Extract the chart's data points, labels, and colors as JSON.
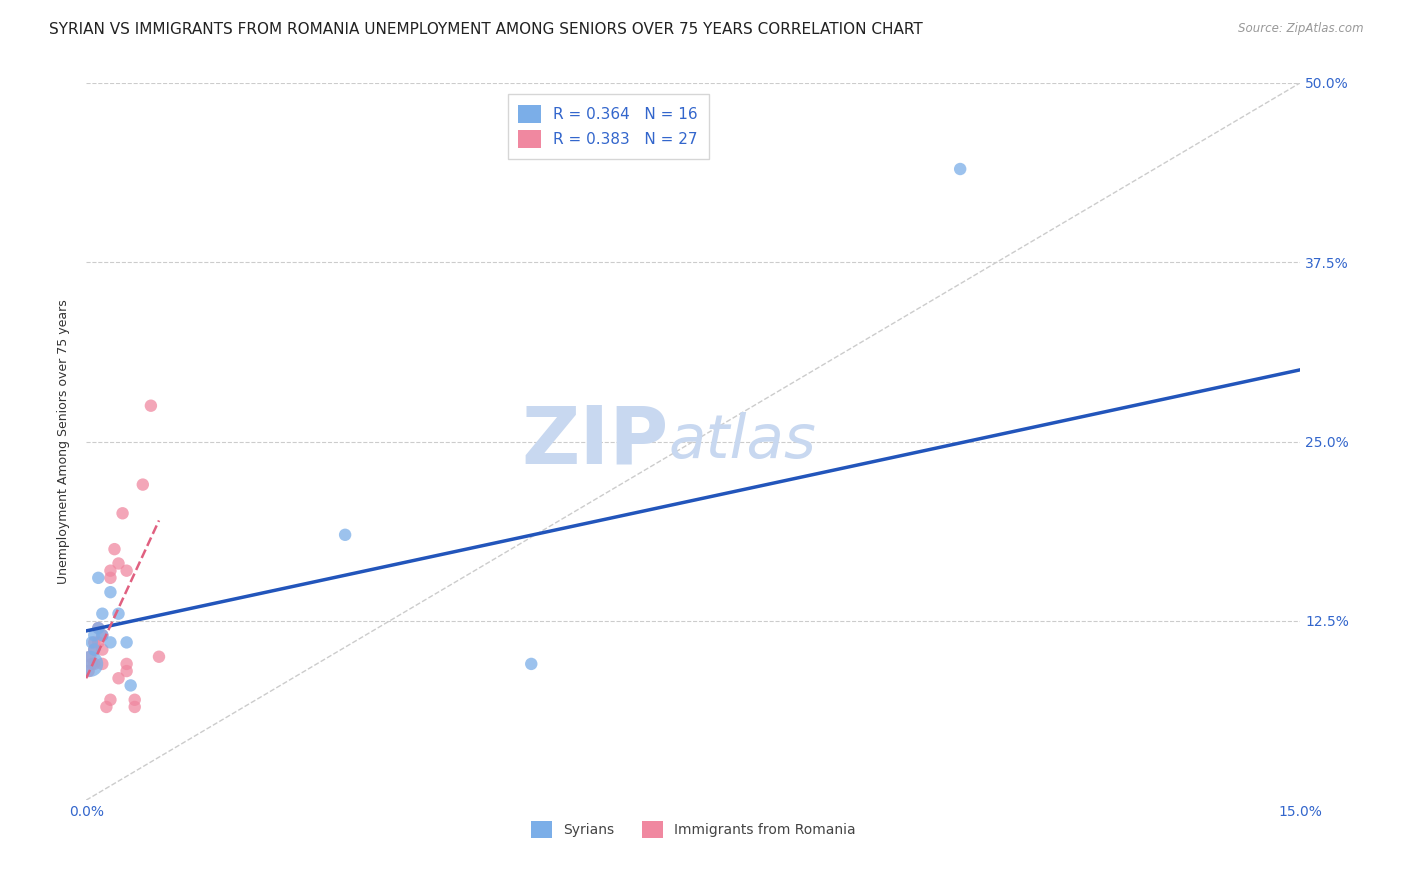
{
  "title": "SYRIAN VS IMMIGRANTS FROM ROMANIA UNEMPLOYMENT AMONG SENIORS OVER 75 YEARS CORRELATION CHART",
  "source": "Source: ZipAtlas.com",
  "ylabel": "Unemployment Among Seniors over 75 years",
  "xlim": [
    0.0,
    0.15
  ],
  "ylim": [
    0.0,
    0.5
  ],
  "legend_entries": [
    {
      "label": "R = 0.364   N = 16",
      "color": "#aac4ee"
    },
    {
      "label": "R = 0.383   N = 27",
      "color": "#f4aabe"
    }
  ],
  "legend_bottom": [
    "Syrians",
    "Immigrants from Romania"
  ],
  "syrians_x": [
    0.0005,
    0.0007,
    0.001,
    0.001,
    0.0015,
    0.0015,
    0.002,
    0.002,
    0.003,
    0.003,
    0.004,
    0.005,
    0.0055,
    0.032,
    0.055,
    0.108
  ],
  "syrians_y": [
    0.095,
    0.11,
    0.115,
    0.105,
    0.12,
    0.155,
    0.115,
    0.13,
    0.145,
    0.11,
    0.13,
    0.11,
    0.08,
    0.185,
    0.095,
    0.44
  ],
  "syrians_sizes": [
    350,
    80,
    80,
    80,
    80,
    80,
    80,
    80,
    80,
    80,
    80,
    80,
    80,
    80,
    80,
    80
  ],
  "romania_x": [
    0.0003,
    0.0005,
    0.0007,
    0.001,
    0.001,
    0.001,
    0.0015,
    0.0015,
    0.002,
    0.002,
    0.002,
    0.0025,
    0.003,
    0.003,
    0.003,
    0.0035,
    0.004,
    0.004,
    0.0045,
    0.005,
    0.005,
    0.005,
    0.006,
    0.006,
    0.007,
    0.008,
    0.009
  ],
  "romania_y": [
    0.09,
    0.1,
    0.095,
    0.105,
    0.11,
    0.095,
    0.11,
    0.12,
    0.095,
    0.105,
    0.115,
    0.065,
    0.07,
    0.155,
    0.16,
    0.175,
    0.085,
    0.165,
    0.2,
    0.09,
    0.095,
    0.16,
    0.065,
    0.07,
    0.22,
    0.275,
    0.1
  ],
  "romania_sizes": [
    80,
    80,
    80,
    80,
    80,
    80,
    80,
    80,
    80,
    80,
    80,
    80,
    80,
    80,
    80,
    80,
    80,
    80,
    80,
    80,
    80,
    80,
    80,
    80,
    80,
    80,
    80
  ],
  "syrian_color": "#7baee8",
  "romanian_color": "#f088a0",
  "syrian_line_color": "#2255bb",
  "romanian_line_color": "#e06080",
  "diagonal_color": "#cccccc",
  "background_color": "#ffffff",
  "watermark_zip": "ZIP",
  "watermark_atlas": "atlas",
  "watermark_color_zip": "#c8d8f0",
  "watermark_color_atlas": "#c8d8f0",
  "title_fontsize": 11,
  "axis_label_fontsize": 9,
  "tick_fontsize": 10,
  "syrian_line_x0": 0.0,
  "syrian_line_x1": 0.15,
  "syrian_line_y0": 0.118,
  "syrian_line_y1": 0.3,
  "romania_line_x0": 0.0,
  "romania_line_x1": 0.009,
  "romania_line_y0": 0.085,
  "romania_line_y1": 0.195
}
